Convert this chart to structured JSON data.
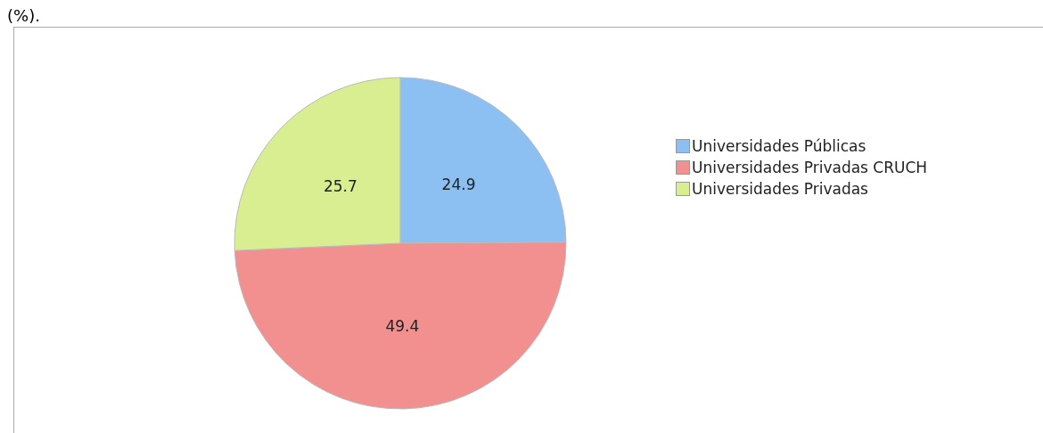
{
  "chart_data": {
    "type": "pie",
    "title": "(%).",
    "categories": [
      "Universidades Públicas",
      "Universidades Privadas CRUCH",
      "Universidades Privadas"
    ],
    "values": [
      24.9,
      49.4,
      25.7
    ],
    "colors": [
      "#8cc0f2",
      "#f29090",
      "#d8ee90"
    ],
    "data_labels": true,
    "legend": "right"
  }
}
